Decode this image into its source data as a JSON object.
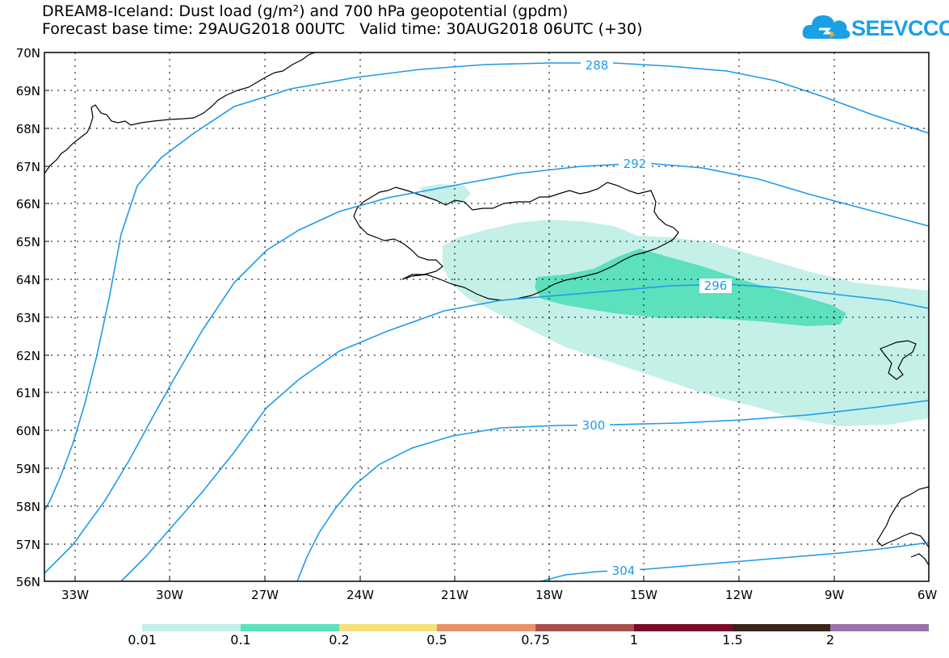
{
  "header": {
    "title_line1": "DREAM8-Iceland: Dust load (g/m²) and 700 hPa geopotential (gpdm)",
    "title_line2": "Forecast base time: 29AUG2018 00UTC   Valid time: 30AUG2018 06UTC (+30)"
  },
  "logo": {
    "text": "SEEVCCC",
    "icon": "cloud-logo-icon",
    "color": "#1aa0e6"
  },
  "map": {
    "lat_labels": [
      "70N",
      "69N",
      "68N",
      "67N",
      "66N",
      "65N",
      "64N",
      "63N",
      "62N",
      "61N",
      "60N",
      "59N",
      "58N",
      "57N",
      "56N"
    ],
    "lon_labels": [
      "33W",
      "30W",
      "27W",
      "24W",
      "21W",
      "18W",
      "15W",
      "12W",
      "9W",
      "6W"
    ],
    "contour_labels": [
      "288",
      "292",
      "296",
      "300",
      "304"
    ],
    "contour_color": "#1e9be8",
    "dust_colors": {
      "light": "#c4f0e8",
      "medium": "#5ce0bd"
    }
  },
  "colorbar": {
    "labels": [
      "0.01",
      "0.1",
      "0.2",
      "0.5",
      "0.75",
      "1",
      "1.5",
      "2"
    ],
    "colors": [
      "#c4f0e8",
      "#5ce0bd",
      "#f5e07a",
      "#e8916a",
      "#a8504a",
      "#7a0a2a",
      "#3a2418",
      "#9a73a8"
    ]
  }
}
